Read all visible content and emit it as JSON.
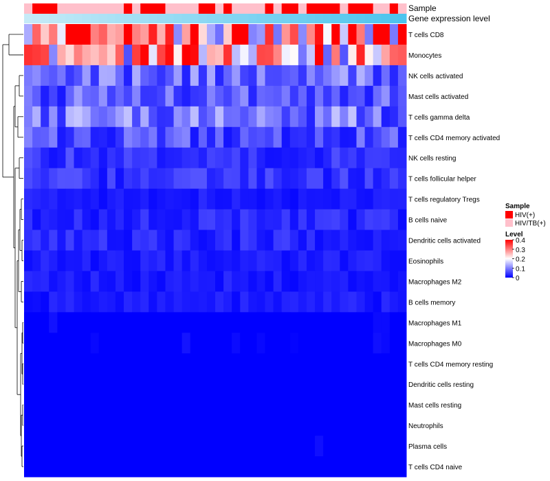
{
  "chart_data": {
    "type": "heatmap",
    "title": "",
    "annotation_tracks": [
      "Sample",
      "Gene expression level"
    ],
    "legend": {
      "sample_title": "Sample",
      "sample_entries": [
        {
          "label": "HIV(+)",
          "color": "#ff0000"
        },
        {
          "label": "HIV/TB(+)",
          "color": "#ffc0cb"
        }
      ],
      "level_title": "Level",
      "level_ticks": [
        "0.4",
        "0.3",
        "0.2",
        "0.1",
        "0"
      ],
      "level_range": [
        0,
        0.4
      ],
      "colors": {
        "low": "#0000ff",
        "mid": "#ffffff",
        "high": "#ff0000"
      }
    },
    "gene_expression_colors": {
      "start": "#c6eaf7",
      "end": "#4cc4ee"
    },
    "sample_groups": [
      1,
      0,
      0,
      0,
      1,
      1,
      1,
      1,
      1,
      1,
      1,
      1,
      0,
      1,
      0,
      0,
      0,
      1,
      1,
      1,
      1,
      0,
      0,
      1,
      0,
      1,
      1,
      1,
      1,
      0,
      1,
      0,
      0,
      1,
      0,
      0,
      0,
      0,
      1,
      0,
      0,
      0,
      1,
      1,
      0,
      1
    ],
    "rows": [
      "T cells CD8",
      "Monocytes",
      "NK cells activated",
      "Mast cells activated",
      "T cells gamma delta",
      "T cells CD4 memory activated",
      "NK cells resting",
      "T cells follicular helper",
      "T cells regulatory  Tregs",
      "B cells naive",
      "Dendritic cells activated",
      "Eosinophils",
      "Macrophages M2",
      "B cells memory",
      "Macrophages M1",
      "Macrophages M0",
      "T cells CD4 memory resting",
      "Dendritic cells resting",
      "Mast cells resting",
      "Neutrophils",
      "Plasma cells",
      "T cells CD4 naive"
    ],
    "row_means": [
      0.33,
      0.25,
      0.08,
      0.07,
      0.09,
      0.06,
      0.04,
      0.04,
      0.02,
      0.03,
      0.03,
      0.02,
      0.02,
      0.02,
      0.01,
      0.01,
      0.0,
      0.0,
      0.0,
      0.0,
      0.01,
      0.0
    ],
    "n_samples": 46
  }
}
